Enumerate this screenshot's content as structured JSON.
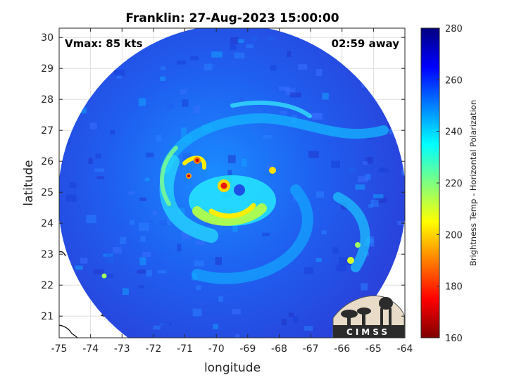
{
  "title": "Franklin: 27-Aug-2023 15:00:00",
  "vmax_label": "Vmax: 85 kts",
  "time_away_label": "02:59 away",
  "logo": {
    "text": "CIMSS",
    "icon": "cimss-logo-icon"
  },
  "map": {
    "xlabel": "longitude",
    "ylabel": "latitude",
    "xlim": [
      -75,
      -64
    ],
    "ylim": [
      20.3,
      30.3
    ],
    "xticks": [
      "-75",
      "-74",
      "-73",
      "-72",
      "-71",
      "-70",
      "-69",
      "-68",
      "-67",
      "-66",
      "-65",
      "-64"
    ],
    "yticks": [
      "21",
      "22",
      "23",
      "24",
      "25",
      "26",
      "27",
      "28",
      "29",
      "30"
    ],
    "grid": true,
    "swath_center": {
      "lon": -69.5,
      "lat": 24.8
    },
    "storm_eye": {
      "lon": -69.8,
      "lat": 25.2
    }
  },
  "colorbar": {
    "label": "Brightness Temp - Horizontal Polarization",
    "min": 160,
    "max": 280,
    "ticks": [
      "280",
      "260",
      "240",
      "220",
      "200",
      "180",
      "160"
    ],
    "colormap": "jet"
  }
}
